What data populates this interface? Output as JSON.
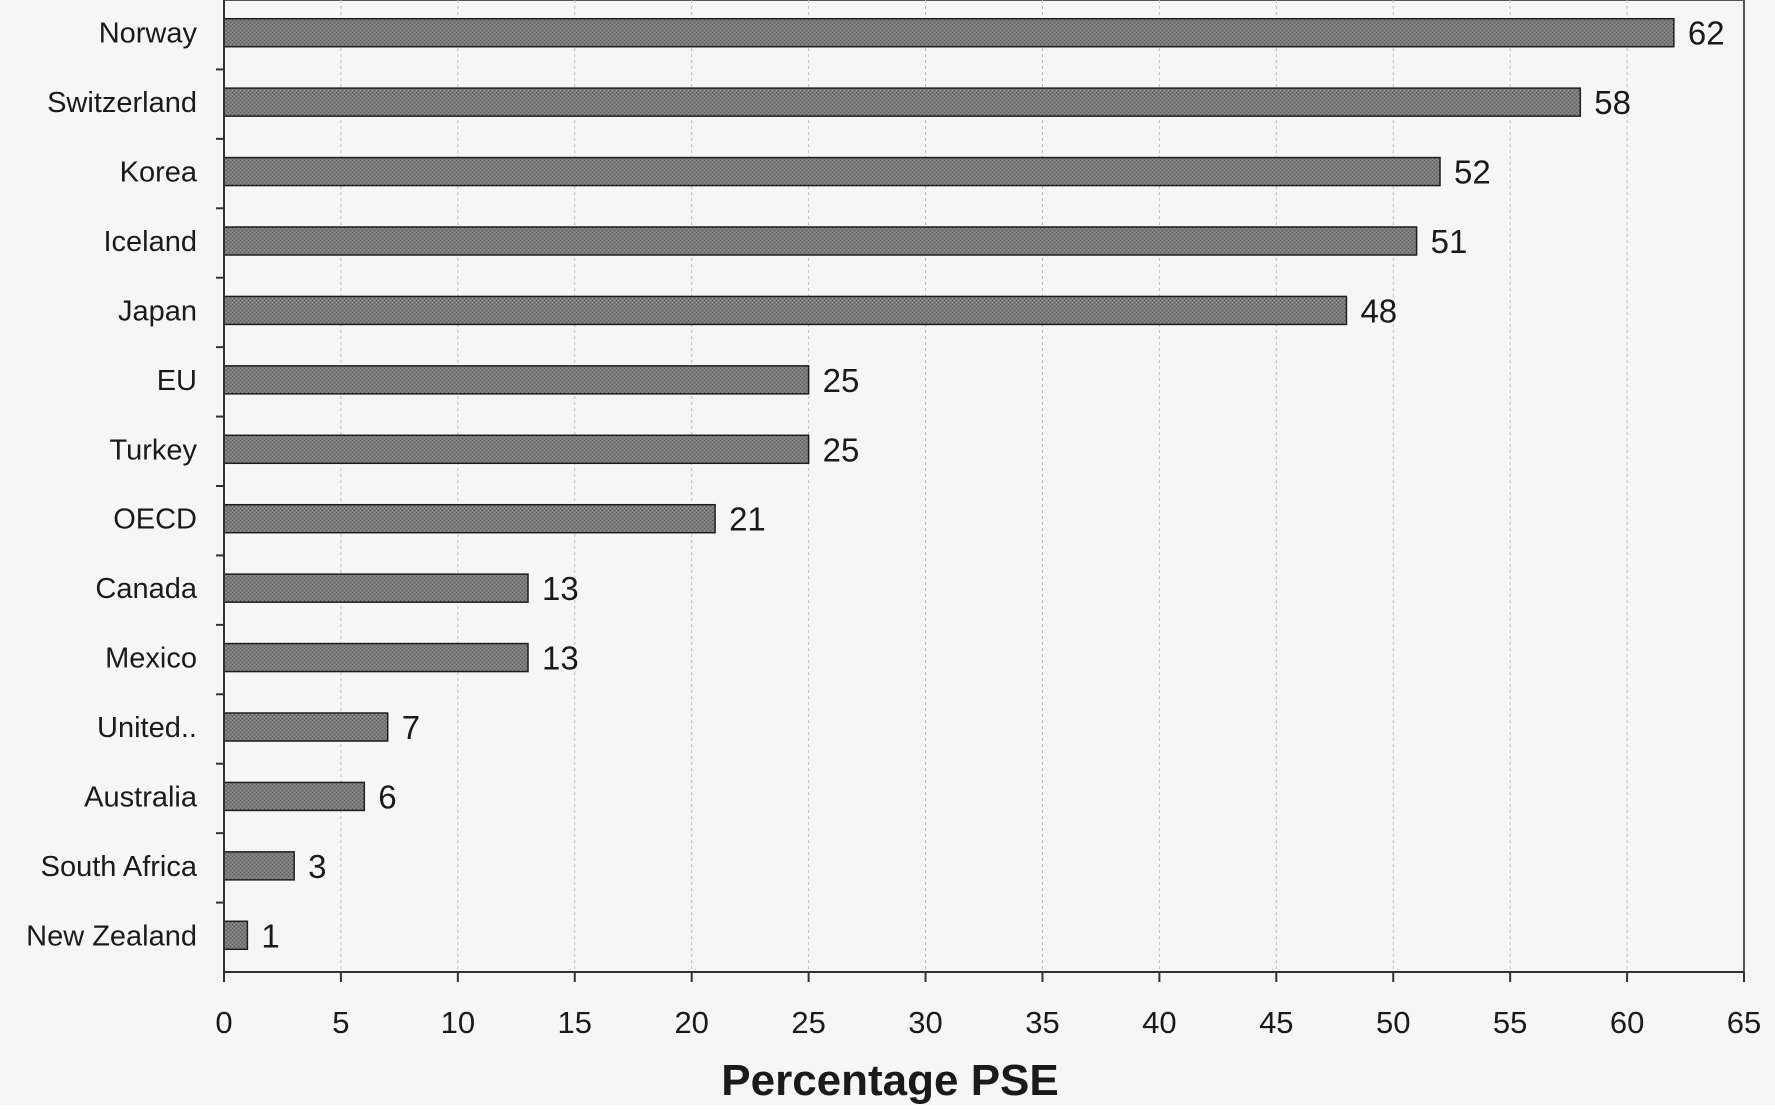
{
  "chart_data": {
    "type": "bar",
    "orientation": "horizontal",
    "categories": [
      "Norway",
      "Switzerland",
      "Korea",
      "Iceland",
      "Japan",
      "EU",
      "Turkey",
      "OECD",
      "Canada",
      "Mexico",
      "United..",
      "Australia",
      "South Africa",
      "New Zealand"
    ],
    "values": [
      62,
      58,
      52,
      51,
      48,
      25,
      25,
      21,
      13,
      13,
      7,
      6,
      3,
      1
    ],
    "data_labels": [
      "62",
      "58",
      "52",
      "51",
      "48",
      "25",
      "25",
      "21",
      "13",
      "13",
      "7",
      "6",
      "3",
      "1"
    ],
    "x_ticks": [
      "0",
      "5",
      "10",
      "15",
      "20",
      "25",
      "30",
      "35",
      "40",
      "45",
      "50",
      "55",
      "60",
      "65"
    ],
    "xlim": [
      0,
      65
    ],
    "xlabel": "Percentage PSE",
    "ylabel": "",
    "title": "",
    "grid": "vertical dashed",
    "legend": "none"
  },
  "colors": {
    "bar_fill": "#7a7a7a",
    "bar_stroke": "#1e1e1e",
    "plot_background": "#f6f6f6",
    "gridline": "#bdbdbd",
    "text": "#1a1a1a"
  }
}
